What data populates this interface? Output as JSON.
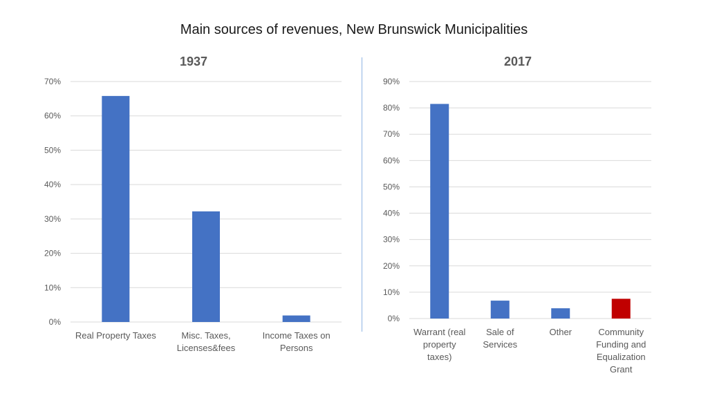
{
  "title": "Main sources of revenues, New Brunswick Municipalities",
  "colors": {
    "bar": "#4472c4",
    "highlight": "#c00000"
  },
  "chart_data": [
    {
      "type": "bar",
      "title": "1937",
      "categories": [
        "Real Property Taxes",
        "Misc. Taxes, Licenses&fees",
        "Income Taxes on Persons"
      ],
      "category_lines": [
        [
          "Real Property Taxes"
        ],
        [
          "Misc. Taxes,",
          "Licenses&fees"
        ],
        [
          "Income Taxes on",
          "Persons"
        ]
      ],
      "values": [
        65.8,
        32.2,
        1.9
      ],
      "ylim": [
        0,
        70
      ],
      "yticks": [
        "0%",
        "10%",
        "20%",
        "30%",
        "40%",
        "50%",
        "60%",
        "70%"
      ],
      "grid": true
    },
    {
      "type": "bar",
      "title": "2017",
      "categories": [
        "Warrant (real property taxes)",
        "Sale of Services",
        "Other",
        "Community Funding and Equalization Grant"
      ],
      "category_lines": [
        [
          "Warrant (real",
          "property",
          "taxes)"
        ],
        [
          "Sale of",
          "Services"
        ],
        [
          "Other"
        ],
        [
          "Community",
          "Funding and",
          "Equalization",
          "Grant"
        ]
      ],
      "values": [
        81.5,
        6.8,
        3.9,
        7.5
      ],
      "highlight_index": 3,
      "ylim": [
        0,
        90
      ],
      "yticks": [
        "0%",
        "10%",
        "20%",
        "30%",
        "40%",
        "50%",
        "60%",
        "70%",
        "80%",
        "90%"
      ],
      "grid": true
    }
  ]
}
